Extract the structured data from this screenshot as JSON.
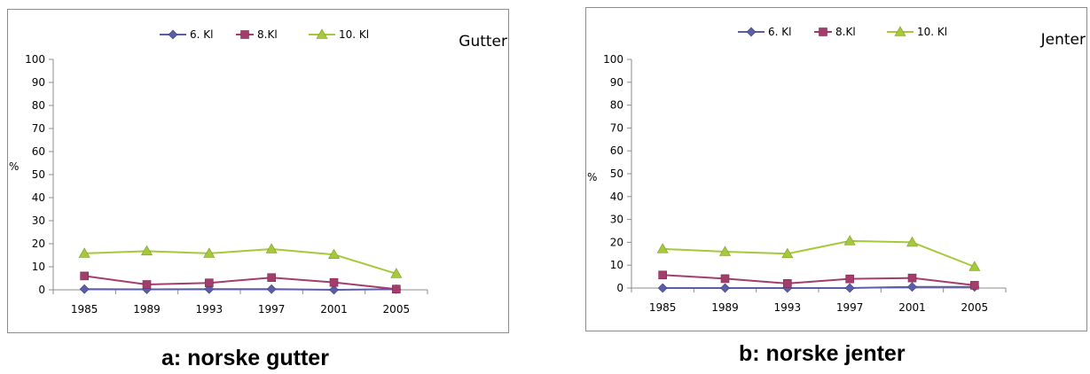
{
  "colors": {
    "series6": "#5b5ea6",
    "series8": "#a33d6b",
    "series10": "#a5c93a"
  },
  "chart_data": [
    {
      "type": "line",
      "title": "Gutter",
      "caption": "a: norske gutter",
      "ylabel": "%",
      "xlabel": "",
      "categories": [
        "1985",
        "1989",
        "1993",
        "1997",
        "2001",
        "2005"
      ],
      "ylim": [
        0,
        100
      ],
      "yticks": [
        "0",
        "10",
        "20",
        "30",
        "40",
        "50",
        "60",
        "70",
        "80",
        "90",
        "100"
      ],
      "legend_position": "top",
      "series": [
        {
          "name": "6. Kl",
          "marker": "diamond",
          "values": [
            0.3,
            0.2,
            0.3,
            0.3,
            0.0,
            0.3
          ]
        },
        {
          "name": "8.Kl",
          "marker": "square",
          "values": [
            6.0,
            2.3,
            3.0,
            5.3,
            3.2,
            0.3
          ]
        },
        {
          "name": "10. Kl",
          "marker": "triangle",
          "values": [
            15.8,
            16.8,
            15.8,
            17.7,
            15.3,
            7.0
          ]
        }
      ]
    },
    {
      "type": "line",
      "title": "Jenter",
      "caption": "b: norske jenter",
      "ylabel": "%",
      "xlabel": "",
      "categories": [
        "1985",
        "1989",
        "1993",
        "1997",
        "2001",
        "2005"
      ],
      "ylim": [
        0,
        100
      ],
      "yticks": [
        "0",
        "10",
        "20",
        "30",
        "40",
        "50",
        "60",
        "70",
        "80",
        "90",
        "100"
      ],
      "legend_position": "top",
      "series": [
        {
          "name": "6. Kl",
          "marker": "diamond",
          "values": [
            0.0,
            0.0,
            0.0,
            0.0,
            0.5,
            0.5
          ]
        },
        {
          "name": "8.Kl",
          "marker": "square",
          "values": [
            5.7,
            4.1,
            2.0,
            4.0,
            4.4,
            1.2
          ]
        },
        {
          "name": "10. Kl",
          "marker": "triangle",
          "values": [
            17.1,
            15.9,
            15.0,
            20.6,
            20.0,
            9.3
          ]
        }
      ]
    }
  ]
}
